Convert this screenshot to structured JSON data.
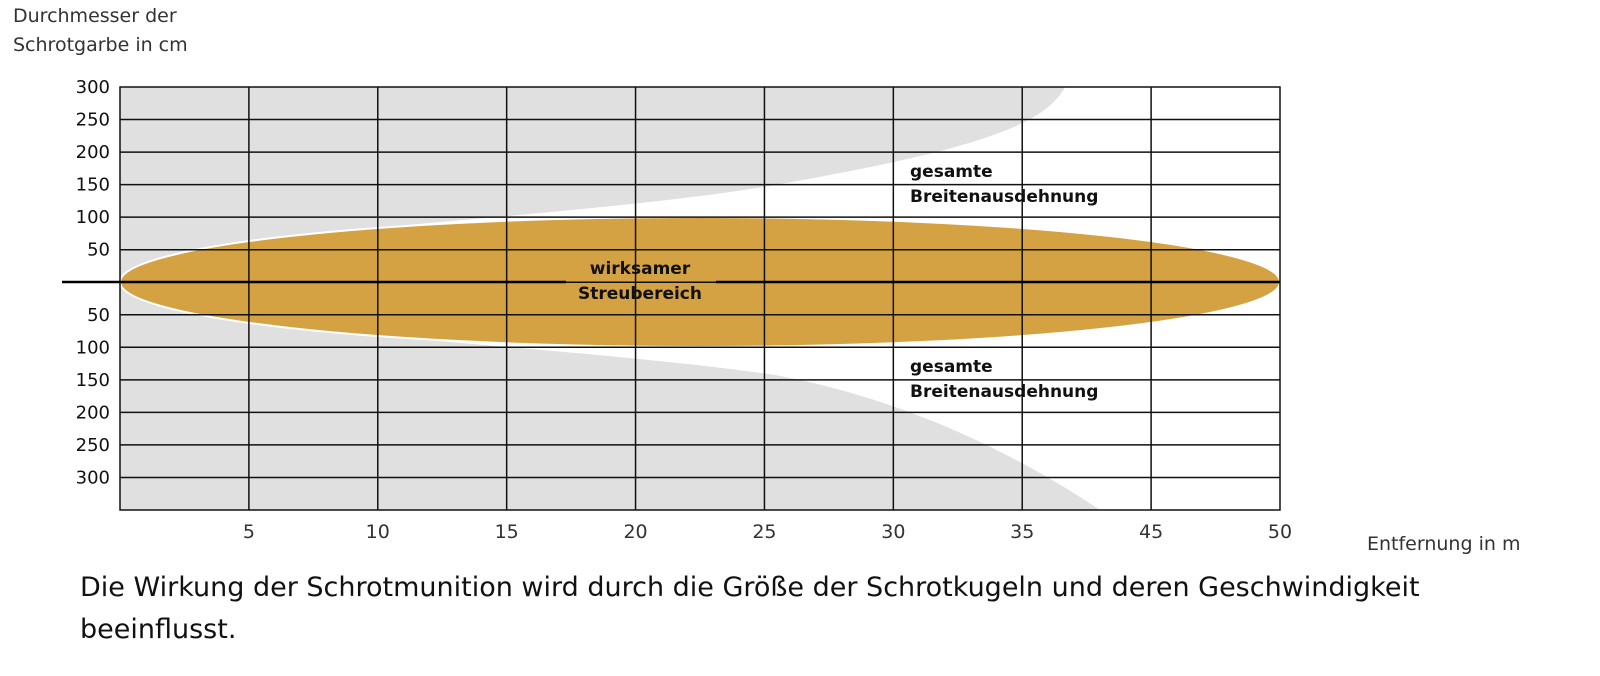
{
  "chart_data": {
    "type": "area",
    "title": "",
    "ylabel_lines": [
      "Durchmesser der",
      "Schrotgarbe in cm"
    ],
    "xlabel": "Entfernung in m",
    "x_ticks": [
      "5",
      "10",
      "15",
      "20",
      "25",
      "30",
      "35",
      "45",
      "50"
    ],
    "y_ticks_upper": [
      "300",
      "250",
      "200",
      "150",
      "100",
      "50"
    ],
    "y_ticks_lower": [
      "50",
      "100",
      "150",
      "200",
      "250",
      "300"
    ],
    "xlim": [
      0,
      50
    ],
    "grid": true,
    "series": [
      {
        "name": "gesamte Breitenausdehnung",
        "color": "#e0e0e0",
        "x": [
          0,
          2,
          5,
          10,
          15,
          20,
          25,
          30,
          35,
          38,
          40
        ],
        "half_width_cm": [
          0,
          30,
          60,
          85,
          110,
          140,
          175,
          220,
          280,
          320,
          330
        ]
      },
      {
        "name": "wirksamer Streubereich",
        "color": "#d4a242",
        "x": [
          0,
          1,
          3,
          5,
          10,
          15,
          20,
          25,
          30,
          35,
          40,
          45,
          48,
          50
        ],
        "half_width_cm": [
          0,
          30,
          48,
          60,
          80,
          90,
          93,
          92,
          88,
          80,
          65,
          45,
          25,
          0
        ]
      }
    ],
    "annotations": {
      "effective_line1": "wirksamer",
      "effective_line2": "Streubereich",
      "total_upper_line1": "gesamte",
      "total_upper_line2": "Breitenausdehnung",
      "total_lower_line1": "gesamte",
      "total_lower_line2": "Breitenausdehnung"
    }
  },
  "caption_lines": [
    "Die Wirkung der Schrotmunition wird durch die Größe der Schrotkugeln und deren Geschwindigkeit",
    "beeinflusst."
  ]
}
